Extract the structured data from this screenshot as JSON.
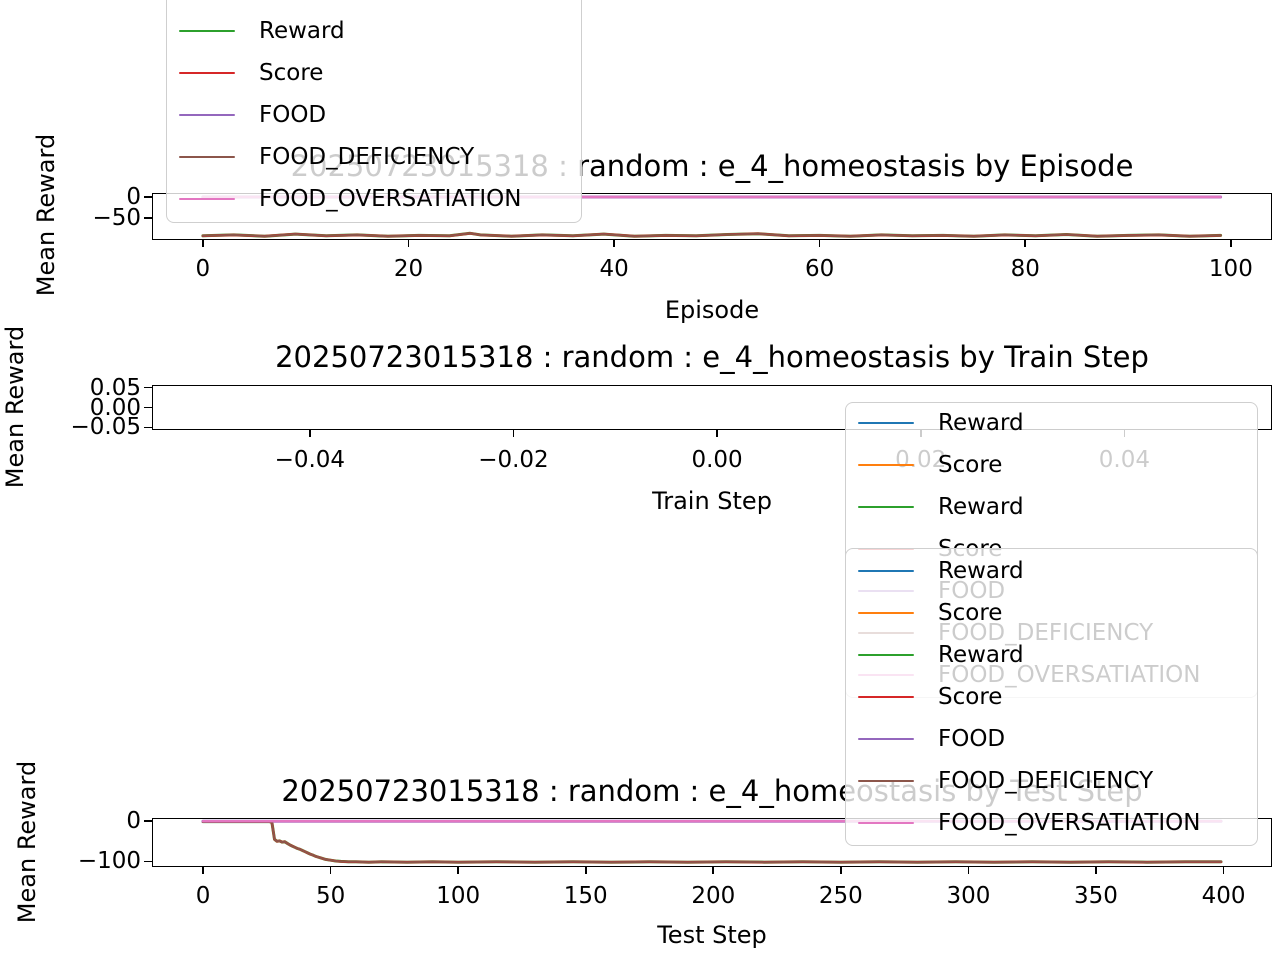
{
  "page": {
    "background": "#ffffff"
  },
  "chart_data": [
    {
      "type": "line",
      "title": "20250723015318 : random : e_4_homeostasis by Episode",
      "xlabel": "Episode",
      "ylabel": "Mean Reward",
      "xlim": [
        -4.95,
        104
      ],
      "ylim": [
        -102,
        9.5
      ],
      "grid": false,
      "legend_position": "upper-left-offscreen",
      "x_ticks": [
        {
          "value": 0,
          "label": "0"
        },
        {
          "value": 20,
          "label": "20"
        },
        {
          "value": 40,
          "label": "40"
        },
        {
          "value": 60,
          "label": "60"
        },
        {
          "value": 80,
          "label": "80"
        },
        {
          "value": 100,
          "label": "100"
        }
      ],
      "y_ticks": [
        {
          "value": 0,
          "label": "0"
        },
        {
          "value": -50,
          "label": "−50"
        }
      ],
      "series": [
        {
          "name": "Reward",
          "color": "#2ca02c",
          "width": 3.0,
          "same_points_as": 3
        },
        {
          "name": "Score",
          "color": "#d62728",
          "width": 2.6,
          "same_points_as": 3
        },
        {
          "name": "FOOD",
          "color": "#9467bd",
          "width": 3.0,
          "points": [
            [
              0,
              0
            ],
            [
              99,
              0
            ]
          ]
        },
        {
          "name": "FOOD_DEFICIENCY",
          "color": "#8c564b",
          "width": 2.0,
          "points": [
            [
              0,
              -92
            ],
            [
              3,
              -90
            ],
            [
              6,
              -93
            ],
            [
              9,
              -88
            ],
            [
              12,
              -92
            ],
            [
              15,
              -90
            ],
            [
              18,
              -93
            ],
            [
              21,
              -91
            ],
            [
              24,
              -92
            ],
            [
              26,
              -86
            ],
            [
              27,
              -90
            ],
            [
              30,
              -93
            ],
            [
              33,
              -90
            ],
            [
              36,
              -92
            ],
            [
              39,
              -88
            ],
            [
              42,
              -93
            ],
            [
              45,
              -91
            ],
            [
              48,
              -92
            ],
            [
              51,
              -89
            ],
            [
              54,
              -87
            ],
            [
              57,
              -92
            ],
            [
              60,
              -91
            ],
            [
              63,
              -93
            ],
            [
              66,
              -90
            ],
            [
              69,
              -92
            ],
            [
              72,
              -91
            ],
            [
              75,
              -93
            ],
            [
              78,
              -90
            ],
            [
              81,
              -92
            ],
            [
              84,
              -89
            ],
            [
              87,
              -93
            ],
            [
              90,
              -91
            ],
            [
              93,
              -90
            ],
            [
              96,
              -93
            ],
            [
              99,
              -91
            ]
          ]
        },
        {
          "name": "FOOD_OVERSATIATION",
          "color": "#e377c2",
          "width": 2.4,
          "points": [
            [
              0,
              0
            ],
            [
              99,
              0
            ]
          ]
        }
      ]
    },
    {
      "type": "line",
      "title": "20250723015318 : random : e_4_homeostasis by Train Step",
      "xlabel": "Train Step",
      "ylabel": "Mean Reward",
      "xlim": [
        -0.0555,
        0.0545
      ],
      "ylim": [
        -0.0563,
        0.0563
      ],
      "grid": false,
      "legend_position": "right-overlapping",
      "x_ticks": [
        {
          "value": -0.04,
          "label": "−0.04"
        },
        {
          "value": -0.02,
          "label": "−0.02"
        },
        {
          "value": 0,
          "label": "0.00"
        },
        {
          "value": 0.02,
          "label": "0.02"
        },
        {
          "value": 0.04,
          "label": "0.04"
        }
      ],
      "y_ticks": [
        {
          "value": 0.05,
          "label": "0.05"
        },
        {
          "value": 0,
          "label": "0.00"
        },
        {
          "value": -0.05,
          "label": "−0.05"
        }
      ],
      "series": []
    },
    {
      "type": "line",
      "title": "20250723015318 : random : e_4_homeostasis by Test Step",
      "xlabel": "Test Step",
      "ylabel": "Mean Reward",
      "xlim": [
        -20,
        419
      ],
      "ylim": [
        -114,
        8
      ],
      "grid": false,
      "legend_position": "right-overlapping",
      "x_ticks": [
        {
          "value": 0,
          "label": "0"
        },
        {
          "value": 50,
          "label": "50"
        },
        {
          "value": 100,
          "label": "100"
        },
        {
          "value": 150,
          "label": "150"
        },
        {
          "value": 200,
          "label": "200"
        },
        {
          "value": 250,
          "label": "250"
        },
        {
          "value": 300,
          "label": "300"
        },
        {
          "value": 350,
          "label": "350"
        },
        {
          "value": 400,
          "label": "400"
        }
      ],
      "y_ticks": [
        {
          "value": 0,
          "label": "0"
        },
        {
          "value": -100,
          "label": "−100"
        }
      ],
      "series": [
        {
          "name": "Reward",
          "color": "#2ca02c",
          "width": 3.0,
          "same_points_as": 3
        },
        {
          "name": "Score",
          "color": "#d62728",
          "width": 2.6,
          "same_points_as": 3
        },
        {
          "name": "FOOD",
          "color": "#9467bd",
          "width": 3.0,
          "points": [
            [
              0,
              0
            ],
            [
              399,
              0
            ]
          ]
        },
        {
          "name": "FOOD_DEFICIENCY",
          "color": "#8c564b",
          "width": 2.0,
          "points": [
            [
              0,
              -1
            ],
            [
              26,
              -1
            ],
            [
              27,
              -3
            ],
            [
              28,
              -45
            ],
            [
              29,
              -50
            ],
            [
              30,
              -49
            ],
            [
              31,
              -52
            ],
            [
              32,
              -51
            ],
            [
              33,
              -55
            ],
            [
              34,
              -59
            ],
            [
              35,
              -62
            ],
            [
              36,
              -65
            ],
            [
              37,
              -68
            ],
            [
              38,
              -70
            ],
            [
              39,
              -73
            ],
            [
              40,
              -76
            ],
            [
              41,
              -79
            ],
            [
              42,
              -82
            ],
            [
              43,
              -84
            ],
            [
              44,
              -87
            ],
            [
              45,
              -89
            ],
            [
              46,
              -91
            ],
            [
              47,
              -93
            ],
            [
              48,
              -95
            ],
            [
              50,
              -97
            ],
            [
              52,
              -99
            ],
            [
              54,
              -100
            ],
            [
              57,
              -101
            ],
            [
              60,
              -101
            ],
            [
              65,
              -102
            ],
            [
              70,
              -101
            ],
            [
              80,
              -102
            ],
            [
              90,
              -101
            ],
            [
              100,
              -102
            ],
            [
              115,
              -101
            ],
            [
              130,
              -102
            ],
            [
              145,
              -101
            ],
            [
              160,
              -102
            ],
            [
              175,
              -101
            ],
            [
              190,
              -102
            ],
            [
              205,
              -101
            ],
            [
              220,
              -102
            ],
            [
              235,
              -101
            ],
            [
              250,
              -102
            ],
            [
              265,
              -101
            ],
            [
              280,
              -102
            ],
            [
              295,
              -101
            ],
            [
              310,
              -102
            ],
            [
              325,
              -101
            ],
            [
              340,
              -102
            ],
            [
              355,
              -101
            ],
            [
              370,
              -102
            ],
            [
              385,
              -101
            ],
            [
              399,
              -101
            ]
          ]
        },
        {
          "name": "FOOD_OVERSATIATION",
          "color": "#e377c2",
          "width": 2.4,
          "points": [
            [
              0,
              0
            ],
            [
              399,
              0
            ]
          ]
        }
      ]
    }
  ],
  "legends": [
    {
      "entries": [
        {
          "label": "Reward",
          "color": "#1f77b4"
        },
        {
          "label": "Score",
          "color": "#ff7f0e"
        },
        {
          "label": "Reward",
          "color": "#2ca02c"
        },
        {
          "label": "Score",
          "color": "#d62728"
        },
        {
          "label": "FOOD",
          "color": "#9467bd"
        },
        {
          "label": "FOOD_DEFICIENCY",
          "color": "#8c564b"
        },
        {
          "label": "FOOD_OVERSATIATION",
          "color": "#e377c2"
        }
      ]
    },
    {
      "entries": [
        {
          "label": "Reward",
          "color": "#1f77b4"
        },
        {
          "label": "Score",
          "color": "#ff7f0e"
        },
        {
          "label": "Reward",
          "color": "#2ca02c"
        },
        {
          "label": "Score",
          "color": "#d62728"
        },
        {
          "label": "FOOD",
          "color": "#9467bd"
        },
        {
          "label": "FOOD_DEFICIENCY",
          "color": "#8c564b"
        },
        {
          "label": "FOOD_OVERSATIATION",
          "color": "#e377c2"
        }
      ]
    },
    {
      "entries": [
        {
          "label": "Reward",
          "color": "#1f77b4"
        },
        {
          "label": "Score",
          "color": "#ff7f0e"
        },
        {
          "label": "Reward",
          "color": "#2ca02c"
        },
        {
          "label": "Score",
          "color": "#d62728"
        },
        {
          "label": "FOOD",
          "color": "#9467bd"
        },
        {
          "label": "FOOD_DEFICIENCY",
          "color": "#8c564b"
        },
        {
          "label": "FOOD_OVERSATIATION",
          "color": "#e377c2"
        }
      ]
    }
  ]
}
